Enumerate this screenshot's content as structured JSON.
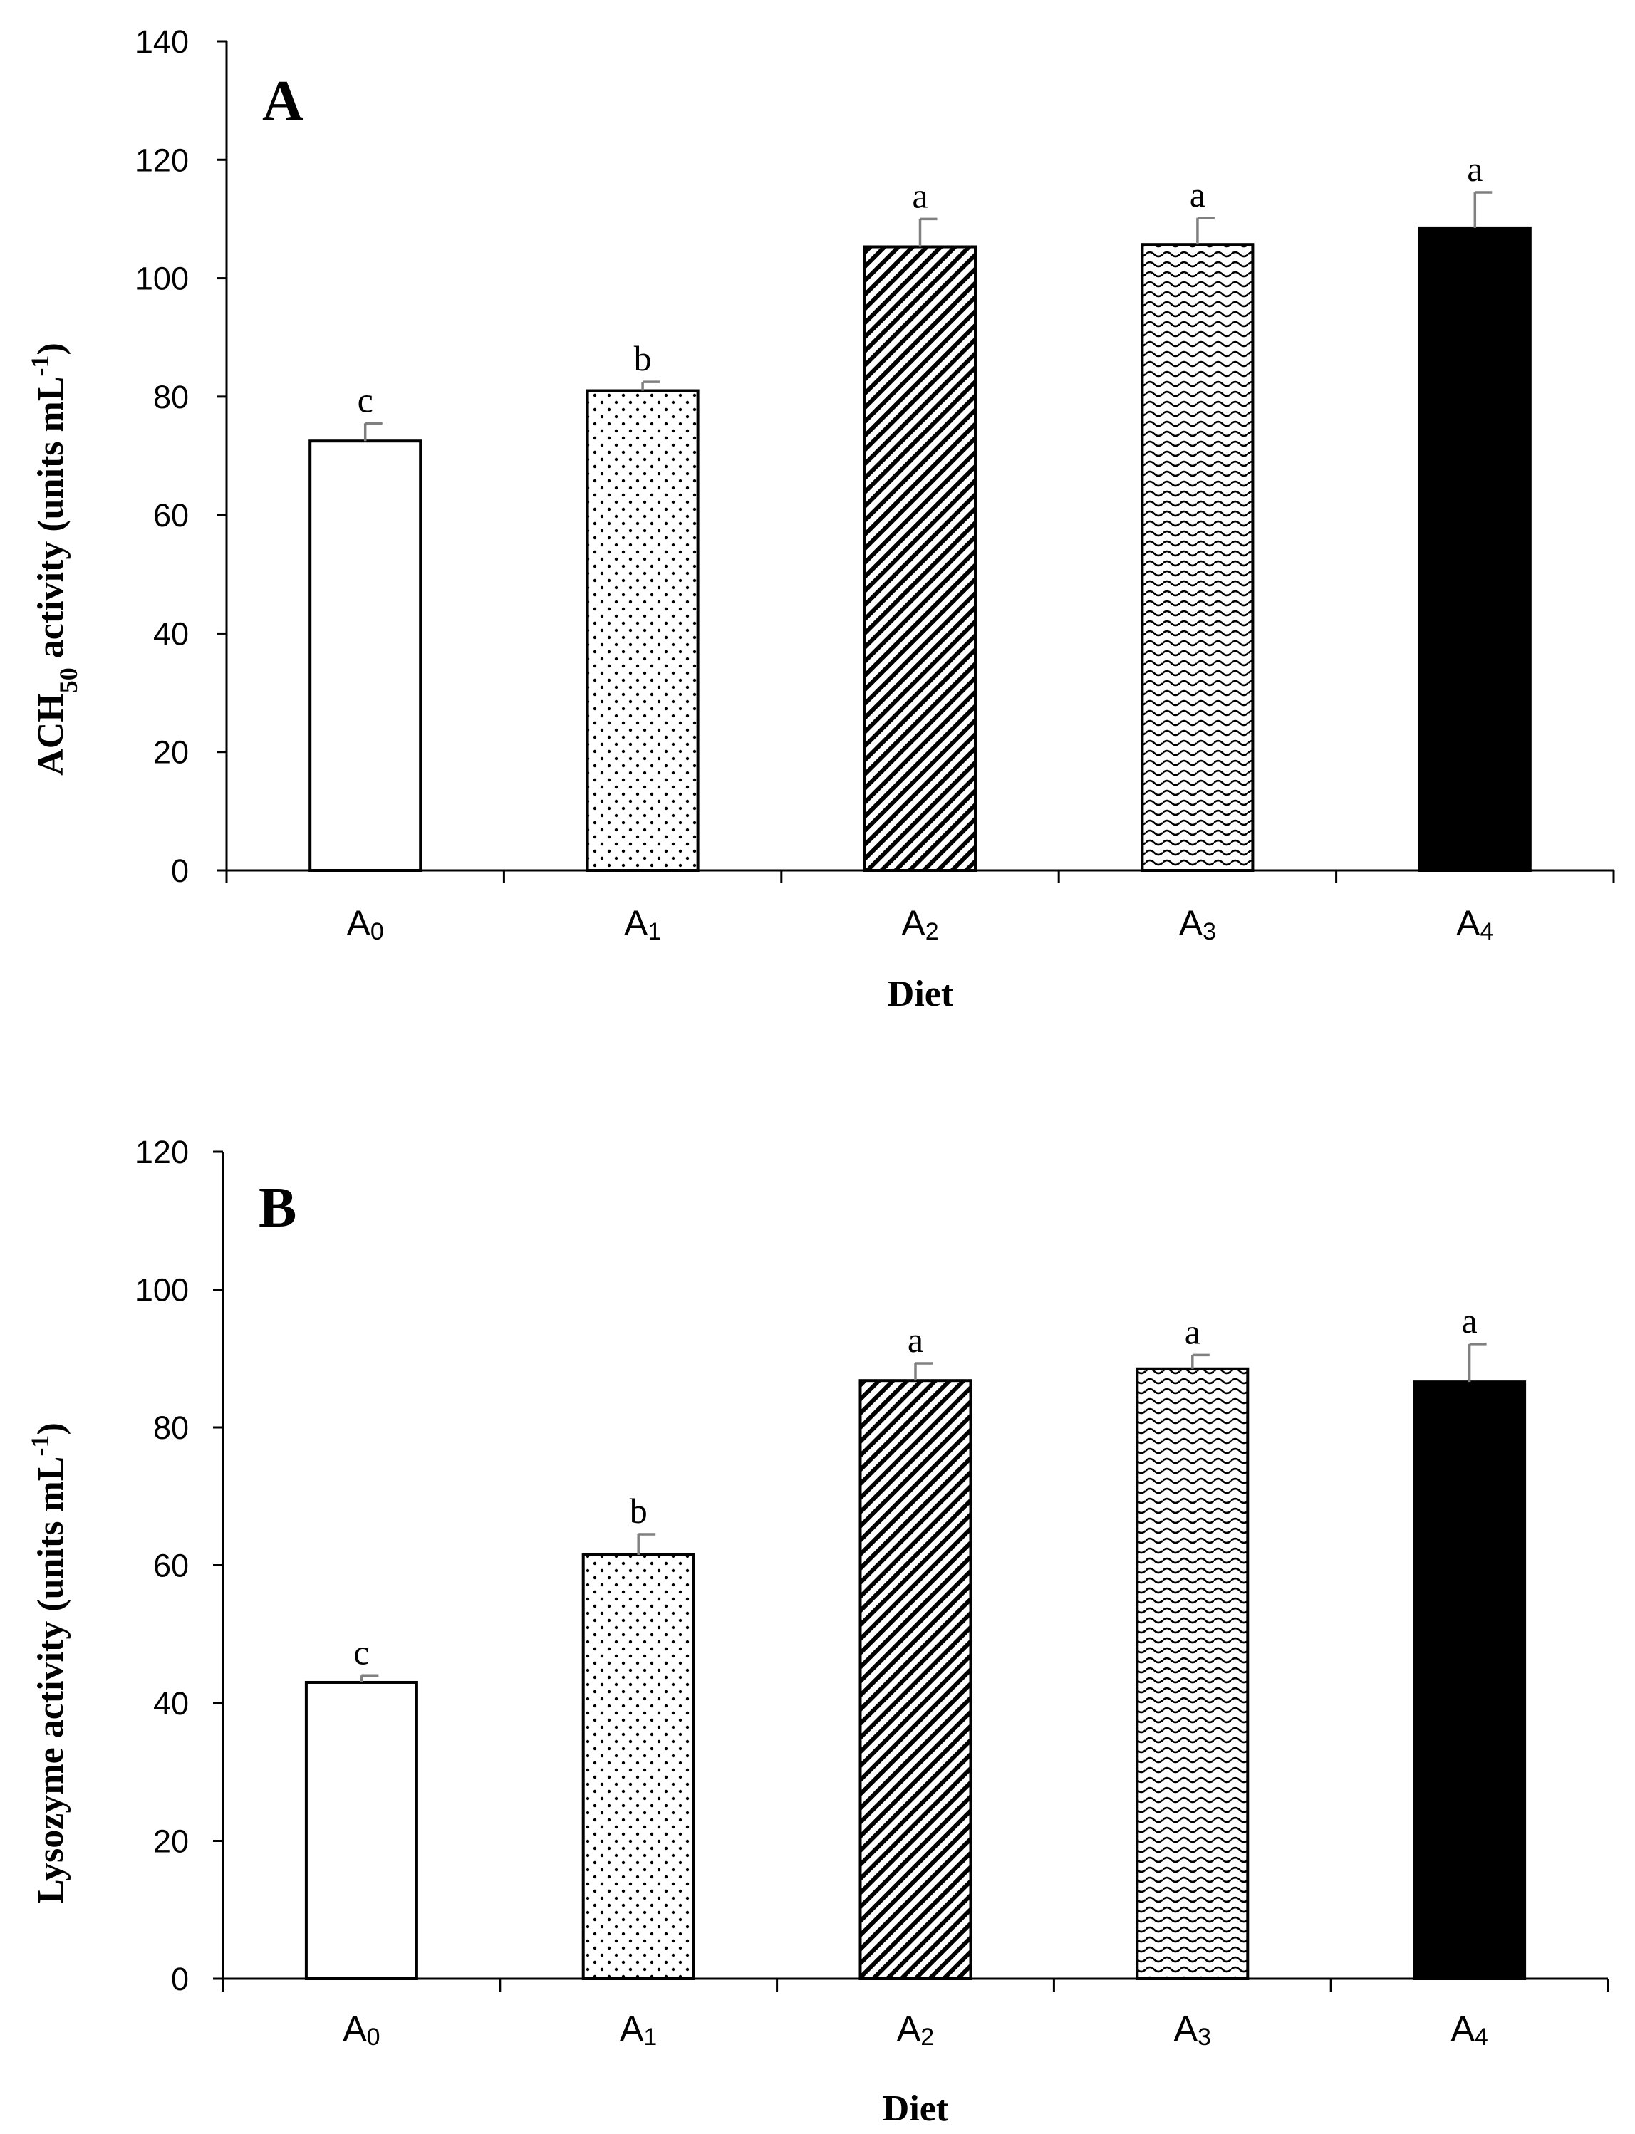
{
  "chart_data": [
    {
      "type": "bar",
      "panel_label": "A",
      "categories": [
        {
          "base": "A",
          "sub": "0"
        },
        {
          "base": "A",
          "sub": "1"
        },
        {
          "base": "A",
          "sub": "2"
        },
        {
          "base": "A",
          "sub": "3"
        },
        {
          "base": "A",
          "sub": "4"
        }
      ],
      "values": [
        72.5,
        81,
        105.3,
        105.7,
        108.5
      ],
      "errors": [
        3,
        1.5,
        4.7,
        4.5,
        6
      ],
      "letters": [
        "c",
        "b",
        "a",
        "a",
        "a"
      ],
      "fills": [
        "white",
        "dots",
        "diagonal",
        "waves",
        "black"
      ],
      "ylim": [
        0,
        140
      ],
      "yticks": [
        0,
        20,
        40,
        60,
        80,
        100,
        120,
        140
      ],
      "xlabel": "Diet",
      "ylabel": {
        "pre": "ACH",
        "sub": "50",
        "mid": " activity (units mL",
        "sup": "-1",
        "post": ")"
      }
    },
    {
      "type": "bar",
      "panel_label": "B",
      "categories": [
        {
          "base": "A",
          "sub": "0"
        },
        {
          "base": "A",
          "sub": "1"
        },
        {
          "base": "A",
          "sub": "2"
        },
        {
          "base": "A",
          "sub": "3"
        },
        {
          "base": "A",
          "sub": "4"
        }
      ],
      "values": [
        43,
        61.5,
        86.8,
        88.5,
        86.6
      ],
      "errors": [
        1,
        3,
        2.5,
        2,
        5.5
      ],
      "letters": [
        "c",
        "b",
        "a",
        "a",
        "a"
      ],
      "fills": [
        "white",
        "dots",
        "diagonal",
        "waves",
        "black"
      ],
      "ylim": [
        0,
        120
      ],
      "yticks": [
        0,
        20,
        40,
        60,
        80,
        100,
        120
      ],
      "xlabel": "Diet",
      "ylabel": {
        "pre": "Lysozyme activity (units mL",
        "sub": "",
        "mid": "",
        "sup": "-1",
        "post": ")"
      }
    }
  ]
}
